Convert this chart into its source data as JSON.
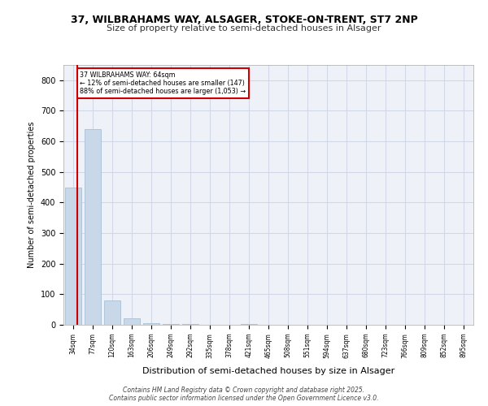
{
  "title1": "37, WILBRAHAMS WAY, ALSAGER, STOKE-ON-TRENT, ST7 2NP",
  "title2": "Size of property relative to semi-detached houses in Alsager",
  "xlabel": "Distribution of semi-detached houses by size in Alsager",
  "ylabel": "Number of semi-detached properties",
  "categories": [
    "34sqm",
    "77sqm",
    "120sqm",
    "163sqm",
    "206sqm",
    "249sqm",
    "292sqm",
    "335sqm",
    "378sqm",
    "421sqm",
    "465sqm",
    "508sqm",
    "551sqm",
    "594sqm",
    "637sqm",
    "680sqm",
    "723sqm",
    "766sqm",
    "809sqm",
    "852sqm",
    "895sqm"
  ],
  "values": [
    450,
    640,
    80,
    20,
    5,
    2,
    2,
    0,
    0,
    2,
    0,
    0,
    0,
    0,
    0,
    0,
    0,
    0,
    0,
    0,
    0
  ],
  "bar_color": "#c8d8e8",
  "bar_edge_color": "#a0b8d0",
  "grid_color": "#d0d8e8",
  "background_color": "#eef2f8",
  "property_line_color": "#cc0000",
  "property_line_x": 0.198,
  "annotation_title": "37 WILBRAHAMS WAY: 64sqm",
  "annotation_line1": "← 12% of semi-detached houses are smaller (147)",
  "annotation_line2": "88% of semi-detached houses are larger (1,053) →",
  "annotation_box_color": "#cc0000",
  "annotation_text_color": "#000000",
  "footer1": "Contains HM Land Registry data © Crown copyright and database right 2025.",
  "footer2": "Contains public sector information licensed under the Open Government Licence v3.0.",
  "ylim": [
    0,
    850
  ],
  "yticks": [
    0,
    100,
    200,
    300,
    400,
    500,
    600,
    700,
    800
  ]
}
